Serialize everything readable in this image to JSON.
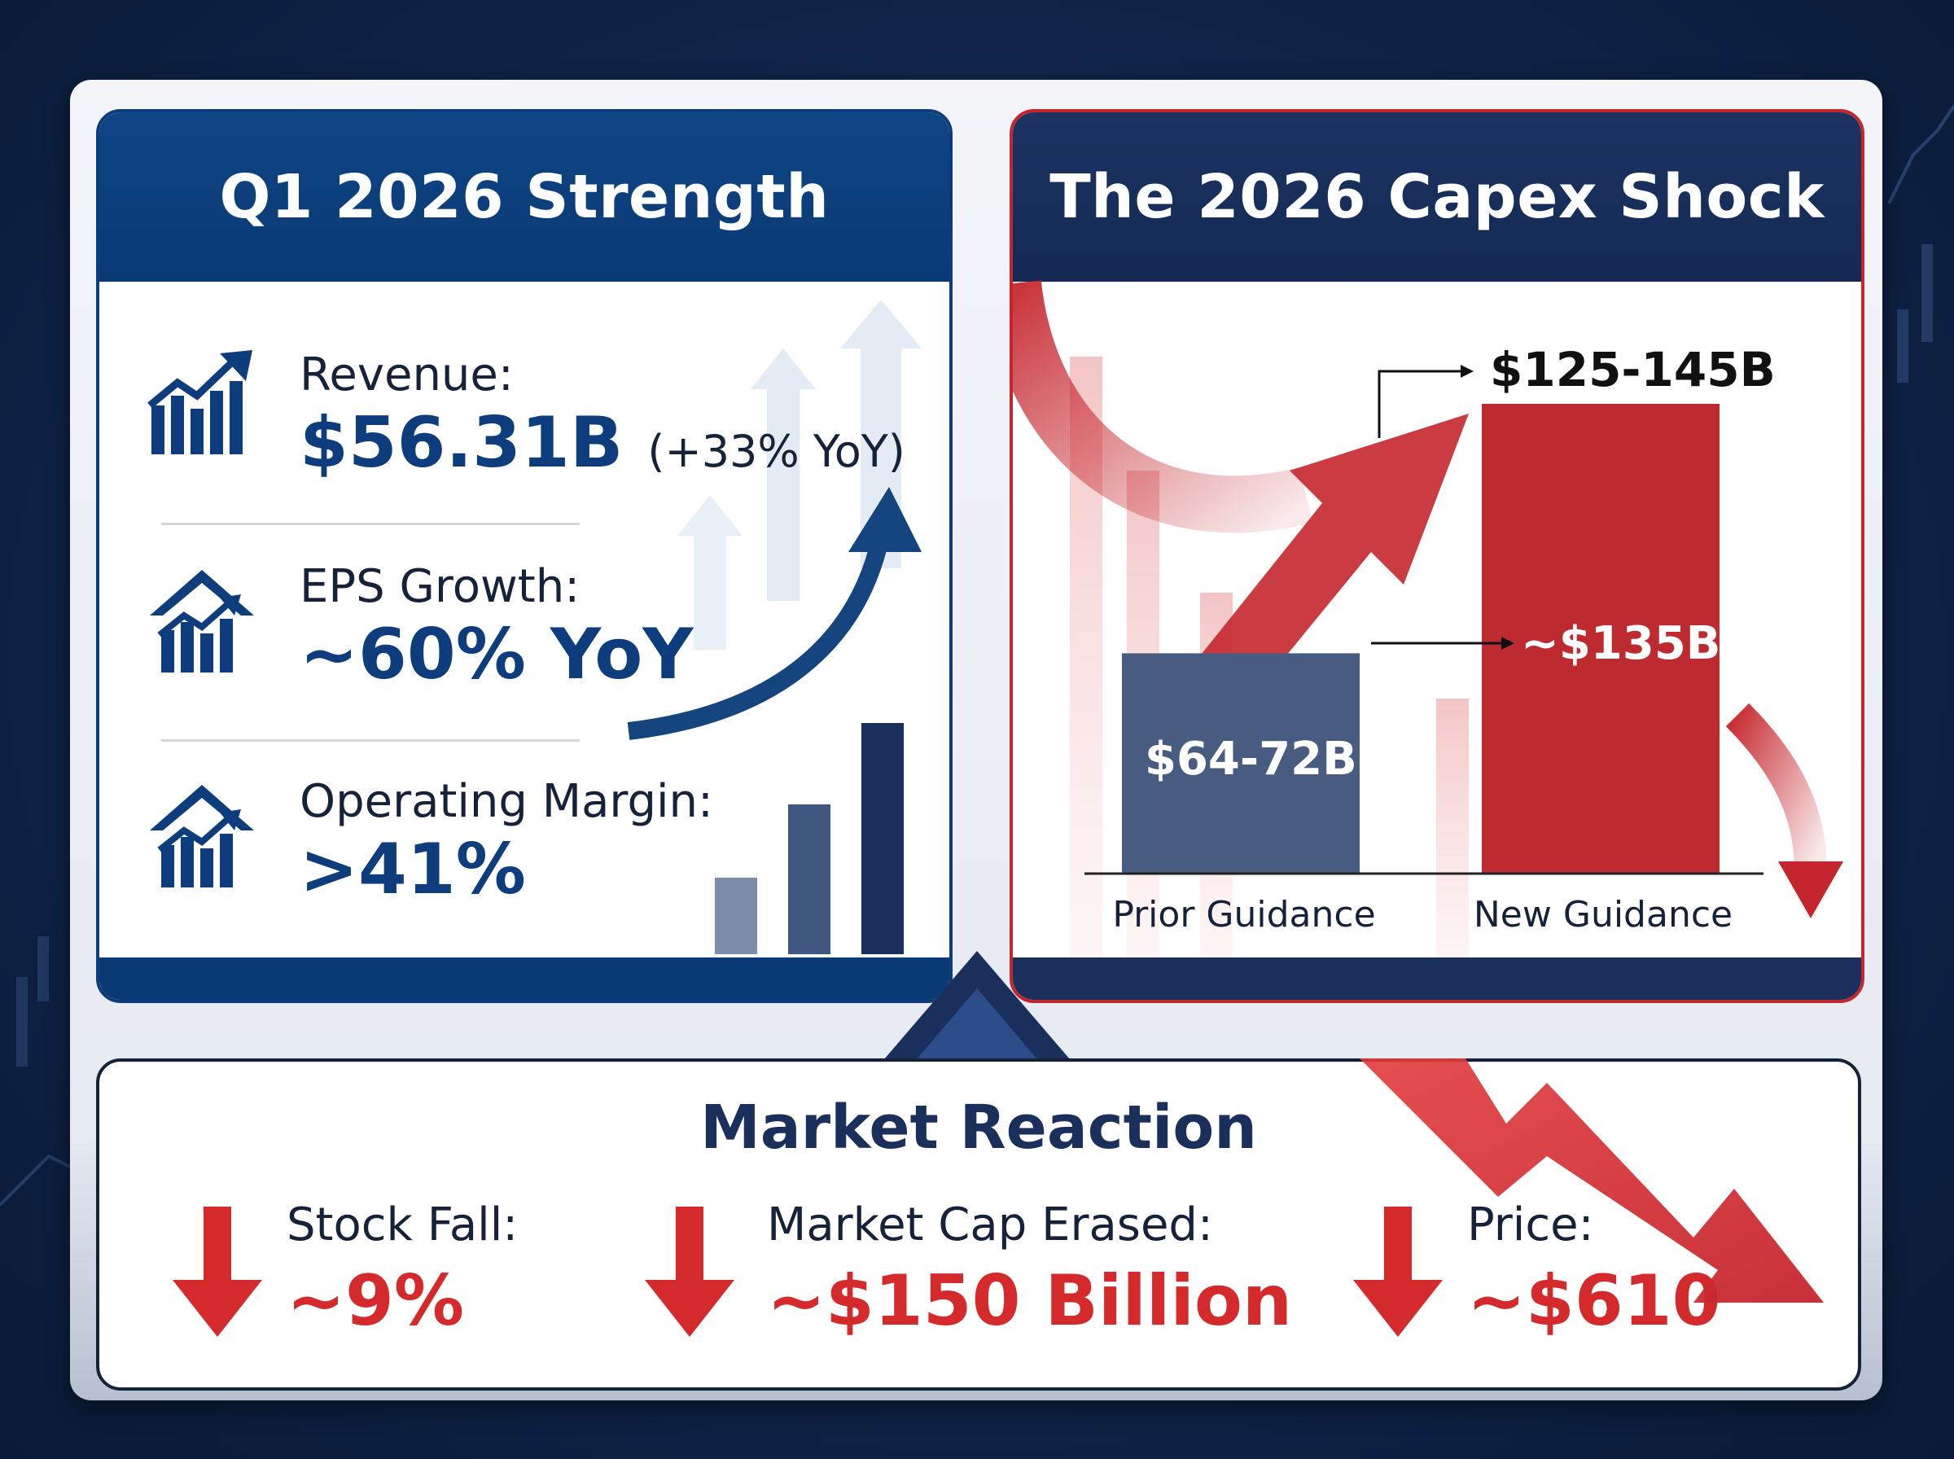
{
  "left_panel": {
    "title": "Q1 2026 Strength",
    "metrics": [
      {
        "label": "Revenue:",
        "value": "$56.31B",
        "note": "(+33% YoY)"
      },
      {
        "label": "EPS Growth:",
        "value": "~60% YoY"
      },
      {
        "label": "Operating Margin:",
        "value": ">41%"
      }
    ],
    "colors": {
      "primary": "#0d3d7c",
      "header": "#0a3a74"
    }
  },
  "right_panel": {
    "title": "The 2026 Capex Shock",
    "labels": {
      "range_high": "$125-145B",
      "midpoint": "~$135B",
      "prior": "$64-72B"
    },
    "colors": {
      "prior_bar": "#485b80",
      "new_bar": "#bd2a30",
      "header": "#1a2f5c"
    }
  },
  "chart_data": {
    "type": "bar",
    "categories": [
      "Prior Guidance",
      "New Guidance"
    ],
    "series": [
      {
        "values": [
          68,
          135
        ]
      }
    ],
    "ranges": [
      [
        64,
        72
      ],
      [
        125,
        145
      ]
    ],
    "annotations": [
      "$64-72B",
      "~$135B",
      "$125-145B"
    ],
    "xlabel": "",
    "ylabel": "",
    "ylim": [
      0,
      145
    ]
  },
  "market_reaction": {
    "title": "Market Reaction",
    "items": [
      {
        "label": "Stock Fall:",
        "value": "~9%"
      },
      {
        "label": "Market Cap Erased:",
        "value": "~$150 Billion"
      },
      {
        "label": "Price:",
        "value": "~$610"
      }
    ],
    "colors": {
      "negative": "#d42a2c"
    }
  }
}
